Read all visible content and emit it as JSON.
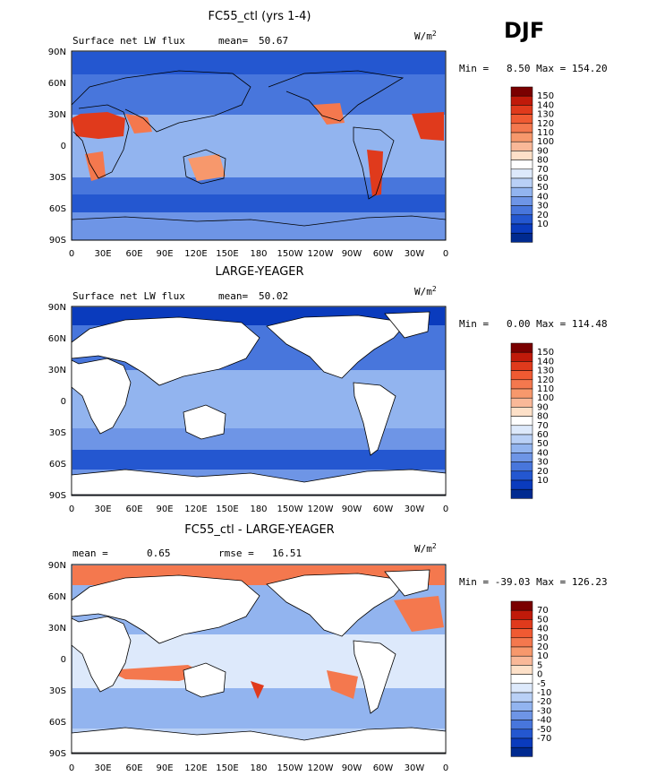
{
  "season": "DJF",
  "panels": [
    {
      "title": "FC55_ctl (yrs 1-4)",
      "left_label": "Surface net LW flux",
      "stat_label": "mean=",
      "stat_value": "50.67",
      "stat2_label": "",
      "stat2_value": "",
      "units": "W/m",
      "units_sup": "2",
      "minmax": "Min =   8.50 Max = 154.20",
      "colorbar": [
        "150",
        "140",
        "130",
        "120",
        "110",
        "100",
        "90",
        "80",
        "70",
        "60",
        "50",
        "40",
        "30",
        "20",
        "10"
      ],
      "colors": [
        "#7a0000",
        "#c01a0a",
        "#e03a1c",
        "#f05a32",
        "#f4784e",
        "#f7986c",
        "#f9b898",
        "#fde0c8",
        "#ffffff",
        "#dde9fb",
        "#b9d0f6",
        "#92b4ef",
        "#6e95e6",
        "#4876dc",
        "#2457d0",
        "#0a3bbd",
        "#002a90"
      ]
    },
    {
      "title": "LARGE-YEAGER",
      "left_label": "Surface net LW flux",
      "stat_label": "mean=",
      "stat_value": "50.02",
      "stat2_label": "",
      "stat2_value": "",
      "units": "W/m",
      "units_sup": "2",
      "minmax": "Min =   0.00 Max = 114.48",
      "colorbar": [
        "150",
        "140",
        "130",
        "120",
        "110",
        "100",
        "90",
        "80",
        "70",
        "60",
        "50",
        "40",
        "30",
        "20",
        "10"
      ],
      "colors": [
        "#7a0000",
        "#c01a0a",
        "#e03a1c",
        "#f05a32",
        "#f4784e",
        "#f7986c",
        "#f9b898",
        "#fde0c8",
        "#ffffff",
        "#dde9fb",
        "#b9d0f6",
        "#92b4ef",
        "#6e95e6",
        "#4876dc",
        "#2457d0",
        "#0a3bbd",
        "#002a90"
      ]
    },
    {
      "title": "FC55_ctl - LARGE-YEAGER",
      "left_label": "mean =",
      "stat_label": "",
      "stat_value": "0.65",
      "stat2_label": "rmse =",
      "stat2_value": "16.51",
      "units": "W/m",
      "units_sup": "2",
      "minmax": "Min = -39.03 Max = 126.23",
      "colorbar": [
        "70",
        "50",
        "40",
        "30",
        "20",
        "10",
        "5",
        "0",
        "-5",
        "-10",
        "-20",
        "-30",
        "-40",
        "-50",
        "-70"
      ],
      "colors": [
        "#7a0000",
        "#c01a0a",
        "#e03a1c",
        "#f05a32",
        "#f4784e",
        "#f7986c",
        "#f9b898",
        "#fde0c8",
        "#ffffff",
        "#dde9fb",
        "#b9d0f6",
        "#92b4ef",
        "#6e95e6",
        "#4876dc",
        "#2457d0",
        "#0a3bbd",
        "#002a90"
      ]
    }
  ],
  "lat_ticks": [
    "90N",
    "60N",
    "30N",
    "0",
    "30S",
    "60S",
    "90S"
  ],
  "lon_ticks": [
    "0",
    "30E",
    "60E",
    "90E",
    "120E",
    "150E",
    "180",
    "150W",
    "120W",
    "90W",
    "60W",
    "30W",
    "0"
  ],
  "chart_data": [
    {
      "type": "heatmap",
      "title": "FC55_ctl (yrs 1-4)",
      "variable": "Surface net LW flux",
      "units": "W/m2",
      "mean": 50.67,
      "min": 8.5,
      "max": 154.2,
      "levels": [
        10,
        20,
        30,
        40,
        50,
        60,
        70,
        80,
        90,
        100,
        110,
        120,
        130,
        140,
        150
      ]
    },
    {
      "type": "heatmap",
      "title": "LARGE-YEAGER",
      "variable": "Surface net LW flux",
      "units": "W/m2",
      "mean": 50.02,
      "min": 0.0,
      "max": 114.48,
      "levels": [
        10,
        20,
        30,
        40,
        50,
        60,
        70,
        80,
        90,
        100,
        110,
        120,
        130,
        140,
        150
      ]
    },
    {
      "type": "heatmap",
      "title": "FC55_ctl - LARGE-YEAGER",
      "units": "W/m2",
      "mean": 0.65,
      "rmse": 16.51,
      "min": -39.03,
      "max": 126.23,
      "levels": [
        -70,
        -50,
        -40,
        -30,
        -20,
        -10,
        -5,
        0,
        5,
        10,
        20,
        30,
        40,
        50,
        70
      ]
    }
  ]
}
